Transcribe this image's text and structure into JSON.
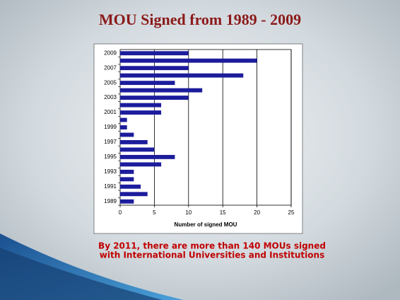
{
  "slide": {
    "title": "MOU Signed from 1989 - 2009",
    "body_lines": [
      "By 2011, there are more than 140 MOUs signed",
      "with International  Universities and Institutions"
    ]
  },
  "chart_data": {
    "type": "hbar",
    "x_label": "Number of signed MOU",
    "categories": [
      "1989",
      null,
      "1991",
      null,
      "1993",
      null,
      "1995",
      null,
      "1997",
      null,
      "1999",
      null,
      "2001",
      null,
      "2003",
      null,
      "2005",
      null,
      "2007",
      null,
      "2009"
    ],
    "values": [
      2,
      4,
      3,
      2,
      2,
      6,
      8,
      5,
      4,
      2,
      1,
      1,
      6,
      6,
      10,
      12,
      8,
      18,
      10,
      20,
      10
    ],
    "color": "#1c1c9c",
    "xlim": [
      0,
      25
    ],
    "xticks": [
      0,
      5,
      10,
      15,
      20,
      25
    ],
    "grid": true
  }
}
